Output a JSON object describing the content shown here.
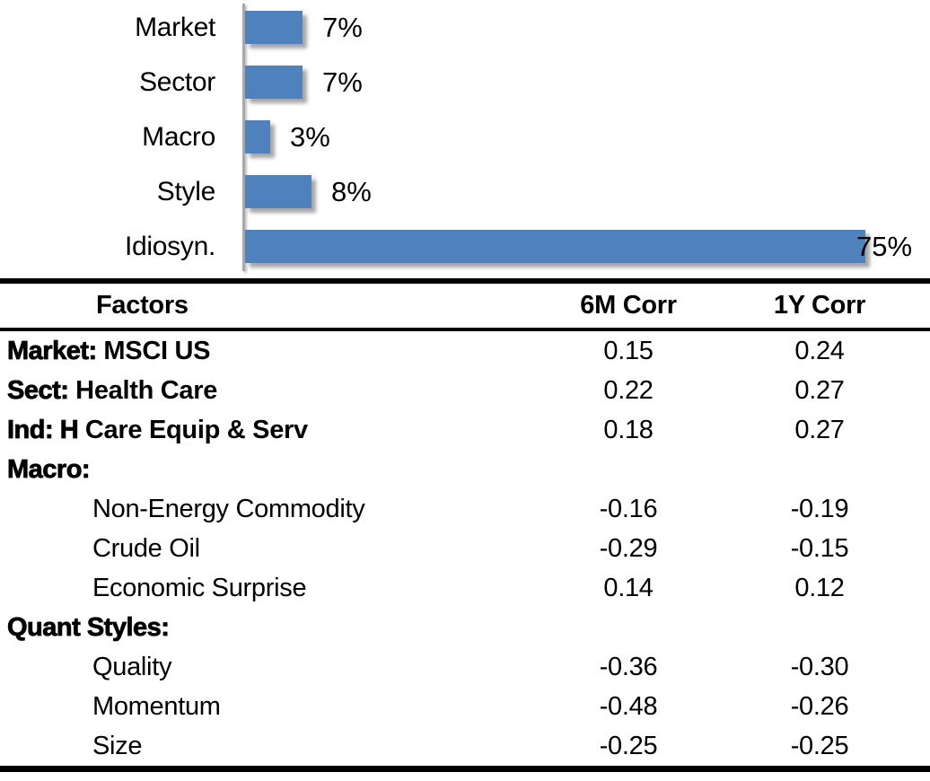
{
  "colors": {
    "bar": "#4f81bd",
    "axis": "#a8a8a8",
    "rule": "#000000",
    "text": "#000000"
  },
  "chart_data": [
    {
      "type": "bar",
      "orientation": "horizontal",
      "title": "",
      "xlabel": "",
      "ylabel": "",
      "categories": [
        "Market",
        "Sector",
        "Macro",
        "Style",
        "Idiosyn."
      ],
      "values": [
        7,
        7,
        3,
        8,
        75
      ],
      "value_labels": [
        "7%",
        "7%",
        "3%",
        "8%",
        "75%"
      ],
      "xlim": [
        0,
        80
      ],
      "grid": false,
      "legend": false,
      "bar_color": "#4f81bd"
    },
    {
      "type": "table",
      "columns": [
        "Factors",
        "6M Corr",
        "1Y Corr"
      ],
      "rows": [
        {
          "style": "main",
          "prefix": "Market:",
          "text": "MSCI US",
          "corr_6m": "0.15",
          "corr_1y": "0.24"
        },
        {
          "style": "main",
          "prefix": "Sect:",
          "text": "Health Care",
          "corr_6m": "0.22",
          "corr_1y": "0.27"
        },
        {
          "style": "main",
          "prefix": "Ind: H",
          "text": "Care Equip & Serv",
          "corr_6m": "0.18",
          "corr_1y": "0.27"
        },
        {
          "style": "section",
          "prefix": "Macro:",
          "text": "",
          "corr_6m": "",
          "corr_1y": ""
        },
        {
          "style": "sub",
          "prefix": "",
          "text": "Non-Energy Commodity",
          "corr_6m": "-0.16",
          "corr_1y": "-0.19"
        },
        {
          "style": "sub",
          "prefix": "",
          "text": "Crude Oil",
          "corr_6m": "-0.29",
          "corr_1y": "-0.15"
        },
        {
          "style": "sub",
          "prefix": "",
          "text": "Economic Surprise",
          "corr_6m": "0.14",
          "corr_1y": "0.12"
        },
        {
          "style": "section",
          "prefix": "Quant Styles:",
          "text": "",
          "corr_6m": "",
          "corr_1y": ""
        },
        {
          "style": "sub",
          "prefix": "",
          "text": "Quality",
          "corr_6m": "-0.36",
          "corr_1y": "-0.30"
        },
        {
          "style": "sub",
          "prefix": "",
          "text": "Momentum",
          "corr_6m": "-0.48",
          "corr_1y": "-0.26"
        },
        {
          "style": "sub",
          "prefix": "",
          "text": "Size",
          "corr_6m": "-0.25",
          "corr_1y": "-0.25"
        }
      ]
    }
  ]
}
